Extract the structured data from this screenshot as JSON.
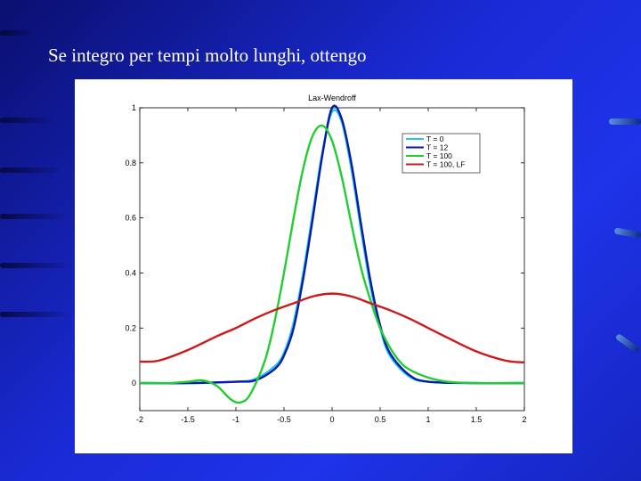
{
  "slide": {
    "title": "Se integro per tempi molto lunghi, ottengo"
  },
  "colors": {
    "background": "#1f33e8",
    "panel": "#ffffff"
  },
  "chart_data": {
    "type": "line",
    "title": "Lax-Wendroff",
    "xlabel": "",
    "ylabel": "",
    "xlim": [
      -2,
      2
    ],
    "ylim": [
      -0.1,
      1
    ],
    "xticks": [
      -2,
      -1.5,
      -1,
      -0.5,
      0,
      0.5,
      1,
      1.5,
      2
    ],
    "xtick_labels": [
      "-2",
      "-1.5",
      "-1",
      "-0.5",
      "0",
      "0.5",
      "1",
      "1.5",
      "2"
    ],
    "yticks": [
      0,
      0.2,
      0.4,
      0.6,
      0.8,
      1
    ],
    "ytick_labels": [
      "0",
      "0.2",
      "0.4",
      "0.6",
      "0.8",
      "1"
    ],
    "grid": false,
    "legend_position": "top-right",
    "series": [
      {
        "name": "T = 0",
        "color": "#22c8e8",
        "x": [
          -2,
          -1.5,
          -1,
          -0.8,
          -0.6,
          -0.5,
          -0.4,
          -0.3,
          -0.2,
          -0.1,
          0,
          0.1,
          0.2,
          0.3,
          0.4,
          0.5,
          0.6,
          0.8,
          1,
          1.5,
          2
        ],
        "y": [
          0,
          0,
          0.005,
          0.015,
          0.06,
          0.11,
          0.22,
          0.4,
          0.62,
          0.84,
          0.985,
          0.95,
          0.78,
          0.56,
          0.35,
          0.2,
          0.1,
          0.025,
          0.005,
          0,
          0
        ]
      },
      {
        "name": "T = 12",
        "color": "#0a1aa8",
        "x": [
          -2,
          -1.5,
          -1,
          -0.8,
          -0.6,
          -0.5,
          -0.4,
          -0.3,
          -0.2,
          -0.1,
          0,
          0.1,
          0.2,
          0.3,
          0.4,
          0.5,
          0.6,
          0.8,
          1,
          1.5,
          2
        ],
        "y": [
          0,
          0,
          0.005,
          0.01,
          0.05,
          0.1,
          0.2,
          0.38,
          0.6,
          0.83,
          1,
          0.96,
          0.8,
          0.58,
          0.37,
          0.21,
          0.11,
          0.03,
          0.005,
          0,
          0
        ]
      },
      {
        "name": "T = 100",
        "color": "#22cc33",
        "x": [
          -2,
          -1.7,
          -1.5,
          -1.35,
          -1.2,
          -1.05,
          -0.95,
          -0.85,
          -0.7,
          -0.6,
          -0.5,
          -0.4,
          -0.3,
          -0.2,
          -0.1,
          0,
          0.1,
          0.2,
          0.3,
          0.4,
          0.5,
          0.6,
          0.7,
          0.8,
          1,
          1.2,
          1.5,
          2
        ],
        "y": [
          0,
          0,
          0.005,
          0.01,
          -0.01,
          -0.06,
          -0.07,
          -0.04,
          0.08,
          0.22,
          0.4,
          0.6,
          0.78,
          0.9,
          0.935,
          0.88,
          0.75,
          0.58,
          0.42,
          0.3,
          0.2,
          0.13,
          0.08,
          0.05,
          0.02,
          0.005,
          0,
          0
        ]
      },
      {
        "name": "T = 100, LF",
        "color": "#cc1a1a",
        "x": [
          -2,
          -1.8,
          -1.5,
          -1.2,
          -1,
          -0.8,
          -0.6,
          -0.4,
          -0.2,
          0,
          0.2,
          0.4,
          0.6,
          0.8,
          1,
          1.2,
          1.5,
          1.8,
          2
        ],
        "y": [
          0.078,
          0.082,
          0.12,
          0.17,
          0.2,
          0.235,
          0.265,
          0.29,
          0.315,
          0.325,
          0.315,
          0.29,
          0.265,
          0.235,
          0.2,
          0.165,
          0.115,
          0.082,
          0.075
        ]
      }
    ]
  }
}
